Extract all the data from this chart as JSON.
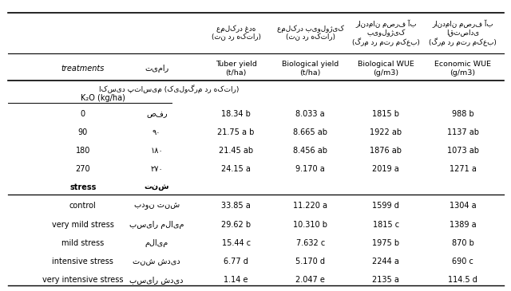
{
  "header_persian": [
    "عملکرد غده\n(تن در هکتار)",
    "عملکرد بیولوژیک\n(تن در هکتار)",
    "راندمان مصرف آب\nبیولوژیک\n(گرم در متر مکعب)",
    "راندمان مصرف آب\nاقتصادی\n(گرم در متر مکعب)"
  ],
  "header_english": [
    "Tuber yield\n(t/ha)",
    "Biological yield\n(t/ha)",
    "Biological WUE\n(g/m3)",
    "Economic WUE\n(g/m3)"
  ],
  "col_treatments": "treatments",
  "col_timar": "تیمار",
  "k2o_label_persian": "اکسید پتاسیم (کیلوگرم در هکتار)",
  "k2o_label_english": "K₂O (kg/ha)",
  "stress_label_english": "stress",
  "stress_label_persian": "تنش",
  "k2o_rows": [
    {
      "en": "0",
      "fa": "صفر",
      "v1": "18.34 b",
      "v2": "8.033 a",
      "v3": "1815 b",
      "v4": "988 b"
    },
    {
      "en": "90",
      "fa": "۹۰",
      "v1": "21.75 a b",
      "v2": "8.665 ab",
      "v3": "1922 ab",
      "v4": "1137 ab"
    },
    {
      "en": "180",
      "fa": "۱۸۰",
      "v1": "21.45 ab",
      "v2": "8.456 ab",
      "v3": "1876 ab",
      "v4": "1073 ab"
    },
    {
      "en": "270",
      "fa": "۲۷۰",
      "v1": "24.15 a",
      "v2": "9.170 a",
      "v3": "2019 a",
      "v4": "1271 a"
    }
  ],
  "stress_rows": [
    {
      "en": "control",
      "fa": "بدون تنش",
      "v1": "33.85 a",
      "v2": "11.220 a",
      "v3": "1599 d",
      "v4": "1304 a"
    },
    {
      "en": "very mild stress",
      "fa": "بسیار ملایم",
      "v1": "29.62 b",
      "v2": "10.310 b",
      "v3": "1815 c",
      "v4": "1389 a"
    },
    {
      "en": "mild stress",
      "fa": "ملایم",
      "v1": "15.44 c",
      "v2": "7.632 c",
      "v3": "1975 b",
      "v4": "870 b"
    },
    {
      "en": "intensive stress",
      "fa": "تنش شدید",
      "v1": "6.77 d",
      "v2": "5.170 d",
      "v3": "2244 a",
      "v4": "690 c"
    },
    {
      "en": "very intensive stress",
      "fa": "بسیار شدید",
      "v1": "1.14 e",
      "v2": "2.047 e",
      "v3": "2135 a",
      "v4": "114.5 d"
    }
  ]
}
